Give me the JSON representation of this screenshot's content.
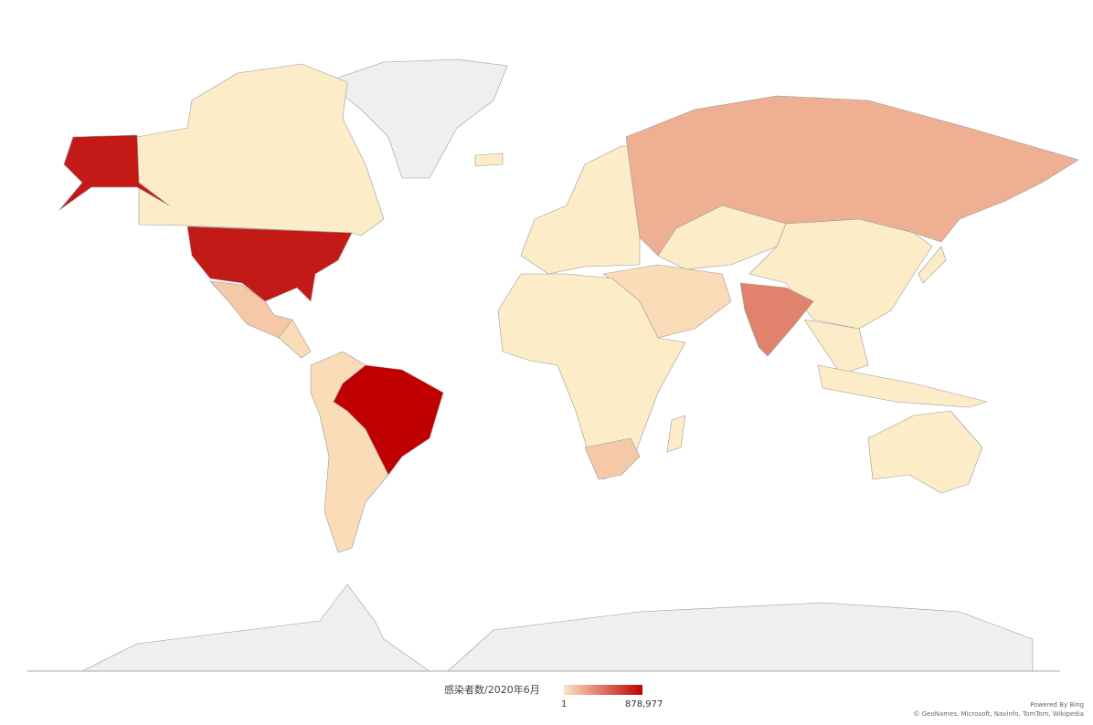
{
  "legend": {
    "title": "感染者数/2020年6月",
    "min": 1,
    "max": {
      "value": 878977,
      "label": "878,977"
    }
  },
  "attribution": {
    "powered": "Powered By Bing",
    "sources": "© GeoNames, Microsoft, Navinfo, TomTom, Wikipedia"
  }
}
